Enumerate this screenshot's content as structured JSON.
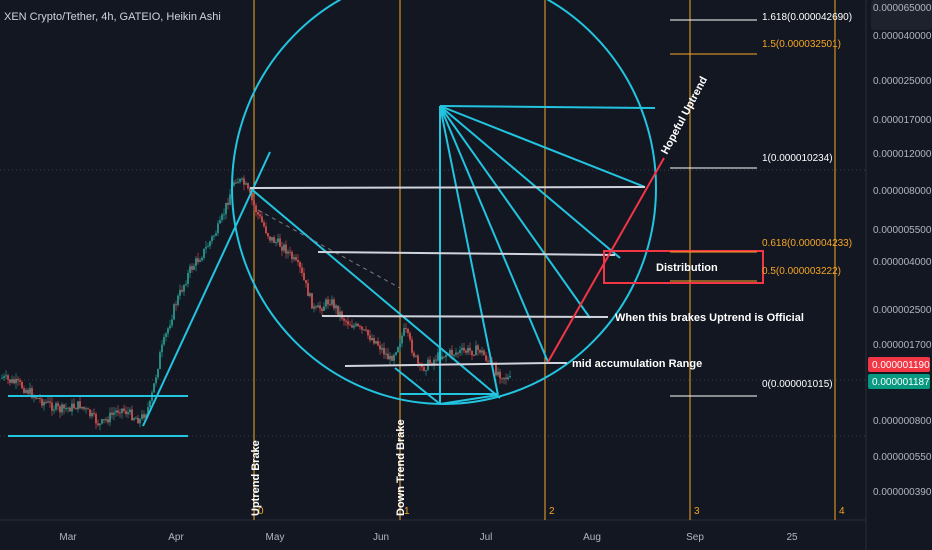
{
  "chart_data": {
    "type": "candlestick",
    "title": "XEN Crypto/Tether, 4h, GATEIO, Heikin Ashi",
    "y_scale": "log",
    "y_ticks": [
      "0.000065000",
      "0.000040000",
      "0.000025000",
      "0.000017000",
      "0.000012000",
      "0.000008000",
      "0.000005500",
      "0.000004000",
      "0.000002500",
      "0.000001700",
      "0.000000800",
      "0.000000550",
      "0.000000390"
    ],
    "x_ticks": [
      "Mar",
      "Apr",
      "May",
      "Jun",
      "Jul",
      "Aug",
      "Sep",
      "25"
    ],
    "price_badges": [
      {
        "value": "0.000001190",
        "color": "#f23645"
      },
      {
        "value": "0.000001187",
        "color": "#089981"
      }
    ],
    "fib_levels": [
      {
        "label": "1.618(0.000042690)",
        "color": "#ffffff"
      },
      {
        "label": "1.5(0.000032501)",
        "color": "#f5a623"
      },
      {
        "label": "1(0.000010234)",
        "color": "#ffffff"
      },
      {
        "label": "0.618(0.000004233)",
        "color": "#f5a623"
      },
      {
        "label": "0.5(0.000003222)",
        "color": "#f5a623"
      },
      {
        "label": "0(0.000001015)",
        "color": "#ffffff"
      }
    ],
    "annotations": [
      "Hopeful Uptrend",
      "Distribution",
      "When this brakes Uptrend is Official",
      "mid accumulation Range",
      "Uptrend Brake",
      "Down Trend Brake"
    ],
    "cycle_labels": [
      "0",
      "1",
      "2",
      "3",
      "4"
    ],
    "colors": {
      "up": "#26a69a",
      "down": "#ef5350",
      "cyan": "#22c4e0",
      "orange": "#f5a623",
      "background": "#131722"
    }
  }
}
